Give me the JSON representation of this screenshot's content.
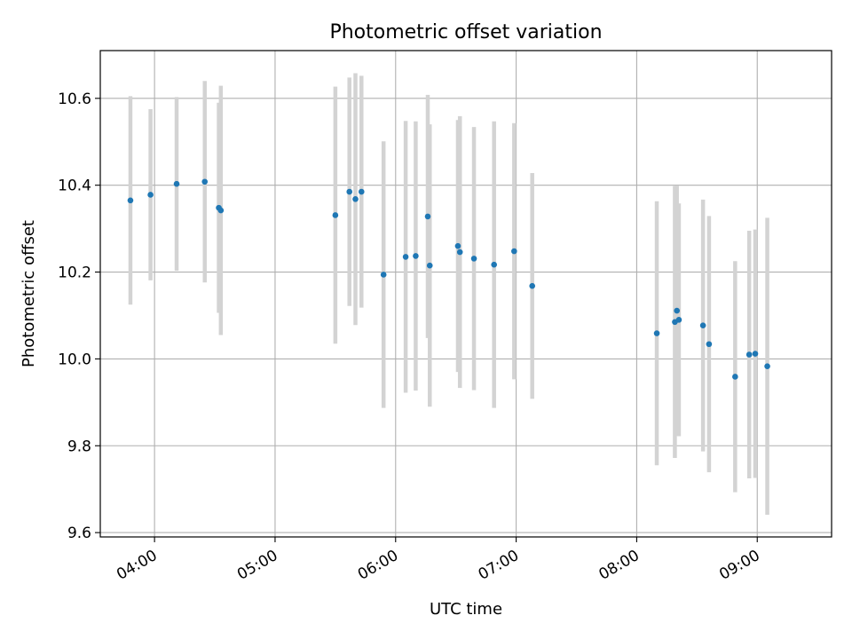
{
  "chart_data": {
    "type": "scatter",
    "title": "Photometric offset variation",
    "xlabel": "UTC time",
    "ylabel": "Photometric offset",
    "x_format": "HH:MM",
    "xlim": [
      "03:33",
      "09:37"
    ],
    "ylim": [
      9.59,
      10.71
    ],
    "x_ticks": [
      "04:00",
      "05:00",
      "06:00",
      "07:00",
      "08:00",
      "09:00"
    ],
    "y_ticks": [
      9.6,
      9.8,
      10.0,
      10.2,
      10.4,
      10.6
    ],
    "grid": true,
    "marker_color": "#1f77b4",
    "errorbar_color": "#d3d3d3",
    "points": [
      {
        "x": "03:48",
        "y": 10.365,
        "yerr": 0.24
      },
      {
        "x": "03:58",
        "y": 10.378,
        "yerr": 0.197
      },
      {
        "x": "04:11",
        "y": 10.403,
        "yerr": 0.2
      },
      {
        "x": "04:25",
        "y": 10.408,
        "yerr": 0.232
      },
      {
        "x": "04:32",
        "y": 10.348,
        "yerr": 0.242
      },
      {
        "x": "04:33",
        "y": 10.342,
        "yerr": 0.287
      },
      {
        "x": "05:30",
        "y": 10.331,
        "yerr": 0.296
      },
      {
        "x": "05:37",
        "y": 10.385,
        "yerr": 0.263
      },
      {
        "x": "05:40",
        "y": 10.368,
        "yerr": 0.29
      },
      {
        "x": "05:43",
        "y": 10.385,
        "yerr": 0.267
      },
      {
        "x": "05:54",
        "y": 10.194,
        "yerr": 0.307
      },
      {
        "x": "06:05",
        "y": 10.235,
        "yerr": 0.313
      },
      {
        "x": "06:10",
        "y": 10.237,
        "yerr": 0.31
      },
      {
        "x": "06:16",
        "y": 10.328,
        "yerr": 0.28
      },
      {
        "x": "06:17",
        "y": 10.215,
        "yerr": 0.325
      },
      {
        "x": "06:31",
        "y": 10.26,
        "yerr": 0.29
      },
      {
        "x": "06:32",
        "y": 10.246,
        "yerr": 0.313
      },
      {
        "x": "06:39",
        "y": 10.231,
        "yerr": 0.303
      },
      {
        "x": "06:49",
        "y": 10.217,
        "yerr": 0.33
      },
      {
        "x": "06:59",
        "y": 10.248,
        "yerr": 0.295
      },
      {
        "x": "07:08",
        "y": 10.168,
        "yerr": 0.26
      },
      {
        "x": "08:10",
        "y": 10.059,
        "yerr": 0.304
      },
      {
        "x": "08:19",
        "y": 10.085,
        "yerr": 0.313
      },
      {
        "x": "08:20",
        "y": 10.111,
        "yerr": 0.288
      },
      {
        "x": "08:21",
        "y": 10.09,
        "yerr": 0.268
      },
      {
        "x": "08:33",
        "y": 10.077,
        "yerr": 0.29
      },
      {
        "x": "08:36",
        "y": 10.034,
        "yerr": 0.295
      },
      {
        "x": "08:49",
        "y": 9.959,
        "yerr": 0.266
      },
      {
        "x": "08:56",
        "y": 10.01,
        "yerr": 0.285
      },
      {
        "x": "08:59",
        "y": 10.012,
        "yerr": 0.286
      },
      {
        "x": "09:05",
        "y": 9.983,
        "yerr": 0.342
      }
    ]
  }
}
